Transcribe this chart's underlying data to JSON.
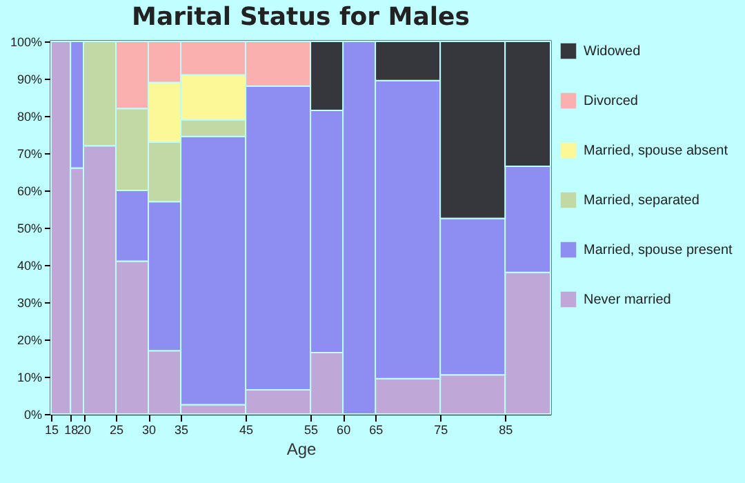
{
  "chart_data": {
    "type": "bar",
    "stacked": true,
    "title": "Marital Status for Males",
    "xlabel": "Age",
    "x": [
      16.5,
      19,
      22.5,
      27.5,
      32.5,
      40,
      50,
      57.5,
      62.5,
      70,
      80,
      88.5
    ],
    "xlim": [
      15,
      92
    ],
    "xticks": [
      15,
      18,
      20,
      25,
      30,
      35,
      45,
      55,
      60,
      65,
      75,
      85
    ],
    "ylim": [
      0,
      100
    ],
    "yticks": [
      {
        "value": 0,
        "label": "0%"
      },
      {
        "value": 10,
        "label": "10%"
      },
      {
        "value": 20,
        "label": "20%"
      },
      {
        "value": 30,
        "label": "30%"
      },
      {
        "value": 40,
        "label": "40%"
      },
      {
        "value": 50,
        "label": "50%"
      },
      {
        "value": 60,
        "label": "60%"
      },
      {
        "value": 70,
        "label": "70%"
      },
      {
        "value": 80,
        "label": "80%"
      },
      {
        "value": 90,
        "label": "90%"
      },
      {
        "value": 100,
        "label": "100%"
      }
    ],
    "legend": "right",
    "series": [
      {
        "name": "Never married",
        "color": "#bfa8d8",
        "values": [
          100,
          66,
          72,
          41,
          17,
          2.5,
          6.5,
          16.5,
          0,
          9.5,
          10.5,
          38
        ]
      },
      {
        "name": "Married, spouse present",
        "color": "#8e8ef2",
        "values": [
          0,
          34,
          0,
          19,
          40,
          72,
          81.5,
          65,
          100,
          80,
          42,
          28.5
        ]
      },
      {
        "name": "Married, separated",
        "color": "#c3d9a5",
        "values": [
          0,
          0,
          28,
          22,
          16,
          4.5,
          0,
          0,
          0,
          0,
          0,
          0
        ]
      },
      {
        "name": "Married, spouse absent",
        "color": "#fdf897",
        "values": [
          0,
          0,
          0,
          0,
          16,
          12,
          0,
          0,
          0,
          0,
          0,
          0
        ]
      },
      {
        "name": "Divorced",
        "color": "#f9b0ae",
        "values": [
          0,
          0,
          0,
          18,
          11,
          9,
          12,
          0,
          0,
          0,
          0,
          0
        ]
      },
      {
        "name": "Widowed",
        "color": "#36373d",
        "values": [
          0,
          0,
          0,
          0,
          0,
          0,
          0,
          18.5,
          0,
          10.5,
          47.5,
          33.5
        ]
      }
    ]
  }
}
